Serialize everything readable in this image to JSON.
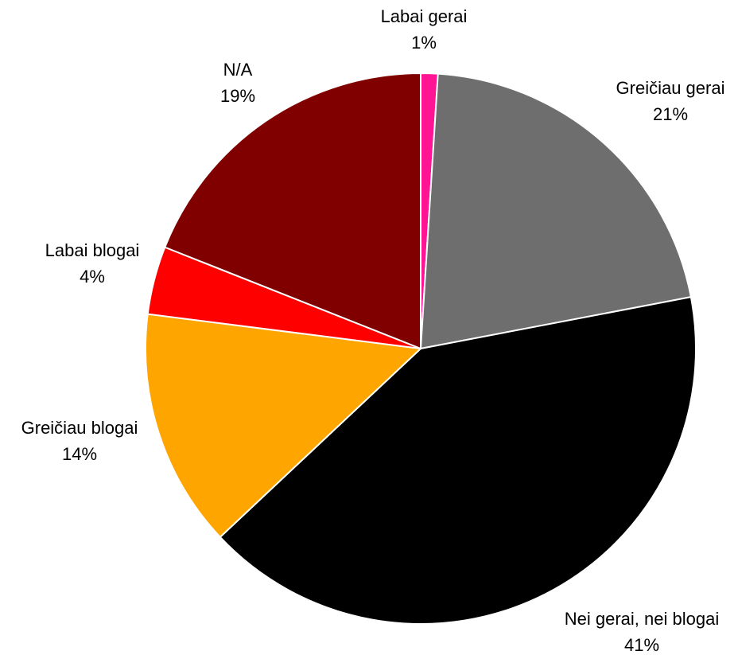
{
  "chart_data": {
    "type": "pie",
    "title": "",
    "start_angle_deg": 0,
    "direction": "clockwise",
    "slices": [
      {
        "label": "Labai gerai",
        "value": 1,
        "percent_label": "1%",
        "color": "#FF1493"
      },
      {
        "label": "Greičiau gerai",
        "value": 21,
        "percent_label": "21%",
        "color": "#6E6E6E"
      },
      {
        "label": "Nei gerai, nei blogai",
        "value": 41,
        "percent_label": "41%",
        "color": "#000000"
      },
      {
        "label": "Greičiau blogai",
        "value": 14,
        "percent_label": "14%",
        "color": "#FFA500"
      },
      {
        "label": "Labai blogai",
        "value": 4,
        "percent_label": "4%",
        "color": "#FF0000"
      },
      {
        "label": "N/A",
        "value": 19,
        "percent_label": "19%",
        "color": "#800000"
      }
    ]
  }
}
